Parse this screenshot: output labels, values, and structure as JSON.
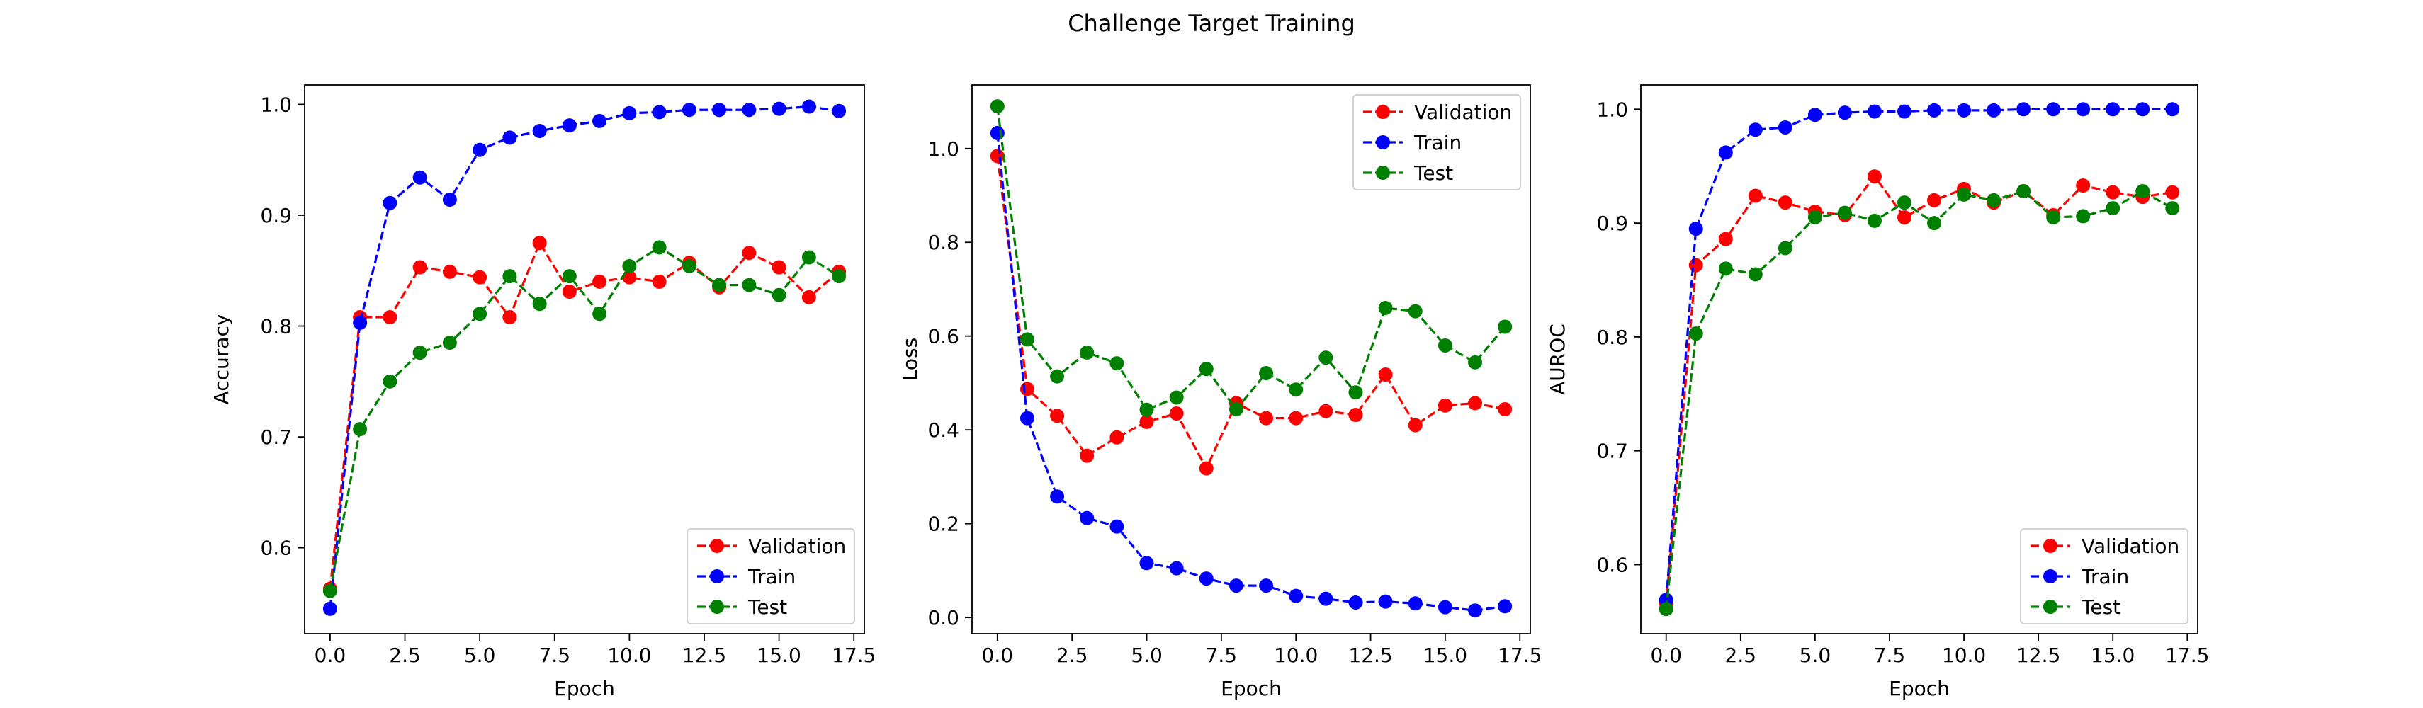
{
  "title": "Challenge Target Training",
  "colors": {
    "Validation": "#ff0000",
    "Train": "#0000ff",
    "Test": "#008000"
  },
  "chart_data": [
    {
      "type": "line",
      "xlabel": "Epoch",
      "ylabel": "Accuracy",
      "xlim": [
        -0.85,
        17.85
      ],
      "ylim": [
        0.5225,
        1.0175
      ],
      "xticks": [
        0.0,
        2.5,
        5.0,
        7.5,
        10.0,
        12.5,
        15.0,
        17.5
      ],
      "xtick_labels": [
        "0.0",
        "2.5",
        "5.0",
        "7.5",
        "10.0",
        "12.5",
        "15.0",
        "17.5"
      ],
      "yticks": [
        0.6,
        0.7,
        0.8,
        0.9,
        1.0
      ],
      "ytick_labels": [
        "0.6",
        "0.7",
        "0.8",
        "0.9",
        "1.0"
      ],
      "legend_position": "lower-right",
      "x": [
        0,
        1,
        2,
        3,
        4,
        5,
        6,
        7,
        8,
        9,
        10,
        11,
        12,
        13,
        14,
        15,
        16,
        17
      ],
      "series": [
        {
          "name": "Validation",
          "values": [
            0.563,
            0.808,
            0.808,
            0.853,
            0.849,
            0.844,
            0.808,
            0.875,
            0.831,
            0.84,
            0.844,
            0.84,
            0.857,
            0.835,
            0.866,
            0.853,
            0.826,
            0.849
          ]
        },
        {
          "name": "Train",
          "values": [
            0.545,
            0.803,
            0.911,
            0.934,
            0.914,
            0.959,
            0.97,
            0.976,
            0.981,
            0.985,
            0.992,
            0.993,
            0.995,
            0.995,
            0.995,
            0.996,
            0.998,
            0.994
          ]
        },
        {
          "name": "Test",
          "values": [
            0.561,
            0.707,
            0.75,
            0.776,
            0.785,
            0.811,
            0.845,
            0.82,
            0.845,
            0.811,
            0.854,
            0.871,
            0.854,
            0.837,
            0.837,
            0.828,
            0.862,
            0.845
          ]
        }
      ]
    },
    {
      "type": "line",
      "xlabel": "Epoch",
      "ylabel": "Loss",
      "xlim": [
        -0.85,
        17.85
      ],
      "ylim": [
        -0.0345,
        1.1355
      ],
      "xticks": [
        0.0,
        2.5,
        5.0,
        7.5,
        10.0,
        12.5,
        15.0,
        17.5
      ],
      "xtick_labels": [
        "0.0",
        "2.5",
        "5.0",
        "7.5",
        "10.0",
        "12.5",
        "15.0",
        "17.5"
      ],
      "yticks": [
        0.0,
        0.2,
        0.4,
        0.6,
        0.8,
        1.0
      ],
      "ytick_labels": [
        "0.0",
        "0.2",
        "0.4",
        "0.6",
        "0.8",
        "1.0"
      ],
      "legend_position": "upper-right",
      "x": [
        0,
        1,
        2,
        3,
        4,
        5,
        6,
        7,
        8,
        9,
        10,
        11,
        12,
        13,
        14,
        15,
        16,
        17
      ],
      "series": [
        {
          "name": "Validation",
          "values": [
            0.984,
            0.487,
            0.43,
            0.345,
            0.384,
            0.417,
            0.435,
            0.318,
            0.457,
            0.425,
            0.425,
            0.44,
            0.432,
            0.518,
            0.41,
            0.452,
            0.457,
            0.444
          ]
        },
        {
          "name": "Train",
          "values": [
            1.033,
            0.425,
            0.258,
            0.212,
            0.194,
            0.116,
            0.105,
            0.083,
            0.068,
            0.068,
            0.046,
            0.04,
            0.032,
            0.034,
            0.03,
            0.022,
            0.015,
            0.024
          ]
        },
        {
          "name": "Test",
          "values": [
            1.09,
            0.593,
            0.514,
            0.565,
            0.542,
            0.443,
            0.469,
            0.53,
            0.444,
            0.521,
            0.486,
            0.554,
            0.48,
            0.66,
            0.653,
            0.58,
            0.544,
            0.62
          ]
        }
      ]
    },
    {
      "type": "line",
      "xlabel": "Epoch",
      "ylabel": "AUROC",
      "xlim": [
        -0.85,
        17.85
      ],
      "ylim": [
        0.5394,
        1.0213
      ],
      "xticks": [
        0.0,
        2.5,
        5.0,
        7.5,
        10.0,
        12.5,
        15.0,
        17.5
      ],
      "xtick_labels": [
        "0.0",
        "2.5",
        "5.0",
        "7.5",
        "10.0",
        "12.5",
        "15.0",
        "17.5"
      ],
      "yticks": [
        0.6,
        0.7,
        0.8,
        0.9,
        1.0
      ],
      "ytick_labels": [
        "0.6",
        "0.7",
        "0.8",
        "0.9",
        "1.0"
      ],
      "legend_position": "lower-right",
      "x": [
        0,
        1,
        2,
        3,
        4,
        5,
        6,
        7,
        8,
        9,
        10,
        11,
        12,
        13,
        14,
        15,
        16,
        17
      ],
      "series": [
        {
          "name": "Validation",
          "values": [
            0.566,
            0.863,
            0.886,
            0.924,
            0.918,
            0.91,
            0.907,
            0.941,
            0.905,
            0.92,
            0.93,
            0.918,
            0.928,
            0.907,
            0.933,
            0.927,
            0.923,
            0.927
          ]
        },
        {
          "name": "Train",
          "values": [
            0.569,
            0.895,
            0.962,
            0.982,
            0.984,
            0.995,
            0.997,
            0.998,
            0.998,
            0.999,
            0.999,
            0.999,
            1.0,
            1.0,
            1.0,
            1.0,
            1.0,
            1.0
          ]
        },
        {
          "name": "Test",
          "values": [
            0.561,
            0.803,
            0.86,
            0.855,
            0.878,
            0.905,
            0.909,
            0.902,
            0.918,
            0.9,
            0.925,
            0.92,
            0.928,
            0.905,
            0.906,
            0.913,
            0.928,
            0.913
          ]
        }
      ]
    }
  ]
}
